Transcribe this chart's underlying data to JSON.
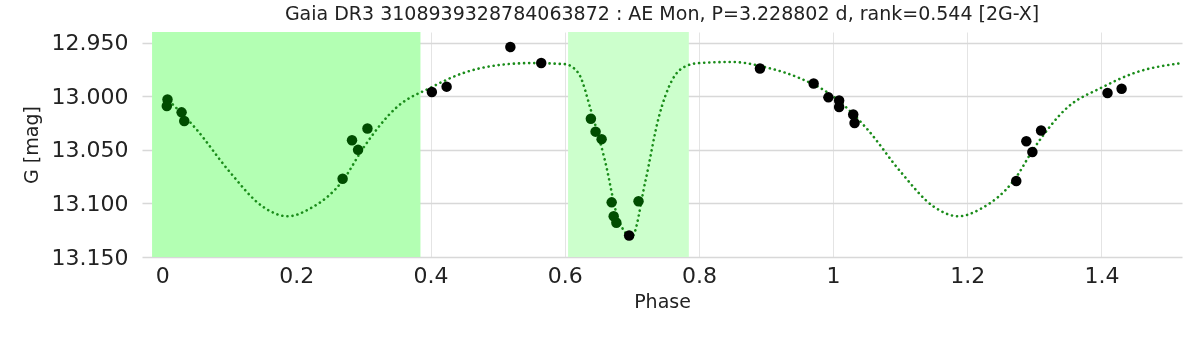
{
  "chart_data": {
    "type": "scatter",
    "title": "Gaia DR3 3108939328784063872 : AE Mon, P=3.228802 d, rank=0.544 [2G-X]",
    "xlabel": "Phase",
    "ylabel": "G [mag]",
    "xlim": [
      -0.03,
      1.52
    ],
    "xticks": [
      0,
      0.2,
      0.4,
      0.6,
      0.8,
      1,
      1.2,
      1.4
    ],
    "ylim": [
      13.15,
      12.94
    ],
    "yticks": [
      {
        "value": 12.95,
        "label": "12.950"
      },
      {
        "value": 13,
        "label": "13.000"
      },
      {
        "value": 13.05,
        "label": "13.050"
      },
      {
        "value": 13.1,
        "label": "13.100"
      },
      {
        "value": 13.15,
        "label": "13.150"
      }
    ],
    "grid": true,
    "marker": "circle",
    "bands": [
      {
        "axis": "x",
        "from": -0.015,
        "to": 0.385,
        "color": "#b3ffb3"
      },
      {
        "axis": "x",
        "from": 0.605,
        "to": 0.785,
        "color": "#ccffcc"
      }
    ],
    "series": [
      {
        "type": "line",
        "color": "#1a8c1a",
        "line_style": "dotted",
        "marker": "none",
        "x": [
          0.005,
          0.05,
          0.1,
          0.15,
          0.187,
          0.22,
          0.27,
          0.3,
          0.35,
          0.4,
          0.45,
          0.5,
          0.55,
          0.6,
          0.62,
          0.64,
          0.66,
          0.68,
          0.7,
          0.72,
          0.74,
          0.76,
          0.78,
          0.8,
          0.85,
          0.9,
          0.95,
          1.0,
          1.05,
          1.1,
          1.15,
          1.187,
          1.22,
          1.27,
          1.3,
          1.35,
          1.4,
          1.45,
          1.52
        ],
        "values": [
          13.001,
          13.03,
          13.07,
          13.103,
          13.112,
          13.105,
          13.078,
          13.048,
          13.01,
          12.992,
          12.978,
          12.971,
          12.969,
          12.97,
          12.978,
          13.015,
          13.06,
          13.115,
          13.131,
          13.08,
          13.02,
          12.985,
          12.972,
          12.969,
          12.968,
          12.973,
          12.983,
          13.0,
          13.03,
          13.07,
          13.103,
          13.112,
          13.105,
          13.078,
          13.048,
          13.01,
          12.992,
          12.978,
          12.969
        ]
      },
      {
        "type": "scatter",
        "color": "#004d00",
        "x": [
          0.008,
          0.007,
          0.029,
          0.033,
          0.269,
          0.283,
          0.292,
          0.306,
          0.639,
          0.646,
          0.655,
          0.67,
          0.673,
          0.677,
          0.71
        ],
        "values": [
          13.003,
          13.009,
          13.015,
          13.023,
          13.077,
          13.041,
          13.05,
          13.03,
          13.021,
          13.033,
          13.04,
          13.099,
          13.112,
          13.118,
          13.098
        ]
      },
      {
        "type": "scatter",
        "color": "#000000",
        "x": [
          0.402,
          0.424,
          0.519,
          0.565,
          0.696,
          0.891,
          0.971,
          0.993,
          1.009,
          1.009,
          1.03,
          1.032,
          1.273,
          1.288,
          1.297,
          1.31,
          1.409,
          1.43
        ],
        "values": [
          12.996,
          12.991,
          12.954,
          12.969,
          13.13,
          12.974,
          12.988,
          13.001,
          13.004,
          13.01,
          13.017,
          13.025,
          13.079,
          13.042,
          13.052,
          13.032,
          12.997,
          12.993
        ]
      }
    ]
  }
}
